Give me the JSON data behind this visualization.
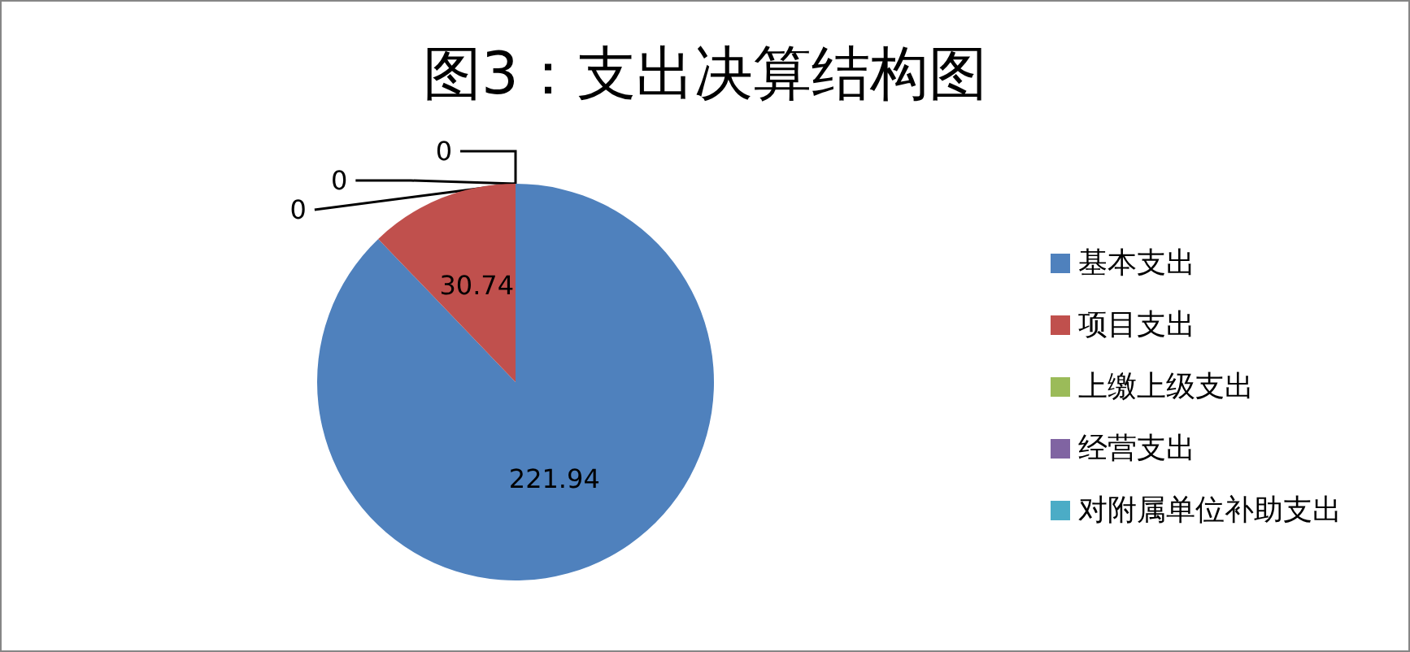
{
  "chart_data": {
    "type": "pie",
    "title": "图3：支出决算结构图",
    "categories": [
      "基本支出",
      "项目支出",
      "上缴上级支出",
      "经营支出",
      "对附属单位补助支出"
    ],
    "values": [
      221.94,
      30.74,
      0,
      0,
      0
    ],
    "value_labels": [
      "221.94",
      "30.74",
      "0",
      "0",
      "0"
    ],
    "colors": [
      "#4f81bd",
      "#c0504d",
      "#9bbb59",
      "#8064a2",
      "#4bacc6"
    ],
    "legend": "right"
  }
}
